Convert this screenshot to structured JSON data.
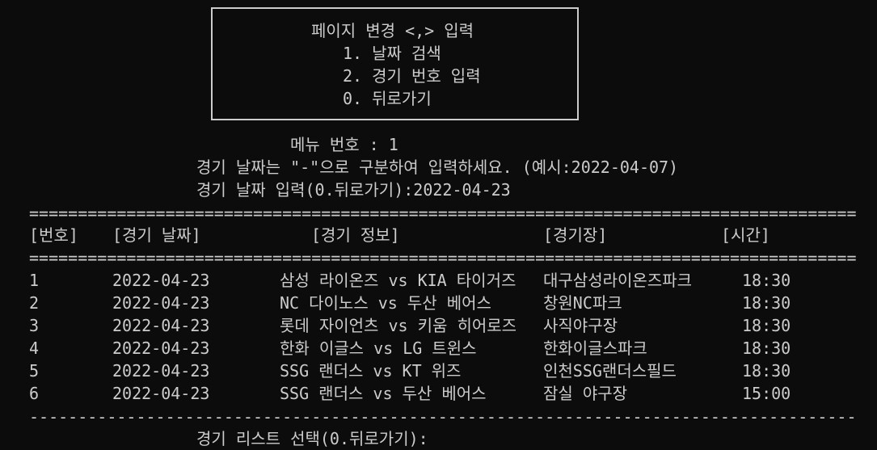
{
  "menu_box": {
    "title": "페이지 변경 <,> 입력",
    "options": [
      "1. 날짜 검색",
      "2. 경기 번호 입력",
      "0. 뒤로가기"
    ]
  },
  "prompt_menu": "메뉴 번호 : 1",
  "date_hint": "경기 날짜는 \"-\"으로 구분하여 입력하세요. (예시:2022-04-07)",
  "date_input": "경기 날짜 입력(0.뒤로가기):2022-04-23",
  "separator_double": "==================================================================================================",
  "separator_single": "--------------------------------------------------------------------------------------------------",
  "table": {
    "headers": [
      "[번호]",
      "[경기 날짜]",
      "[경기 정보]",
      "[경기장]",
      "[시간]"
    ],
    "rows": [
      [
        "1",
        "2022-04-23",
        "삼성 라이온즈 vs KIA 타이거즈",
        "대구삼성라이온즈파크",
        "18:30"
      ],
      [
        "2",
        "2022-04-23",
        "NC 다이노스 vs 두산 베어스",
        "창원NC파크",
        "18:30"
      ],
      [
        "3",
        "2022-04-23",
        "롯데 자이언츠 vs 키움 히어로즈",
        "사직야구장",
        "18:30"
      ],
      [
        "4",
        "2022-04-23",
        "한화 이글스 vs LG 트윈스",
        "한화이글스파크",
        "18:30"
      ],
      [
        "5",
        "2022-04-23",
        "SSG 랜더스 vs KT 위즈",
        "인천SSG랜더스필드",
        "18:30"
      ],
      [
        "6",
        "2022-04-23",
        "SSG 랜더스 vs 두산 베어스",
        "잠실 야구장",
        "15:00"
      ]
    ]
  },
  "list_prompt": "경기 리스트 선택(0.뒤로가기):"
}
